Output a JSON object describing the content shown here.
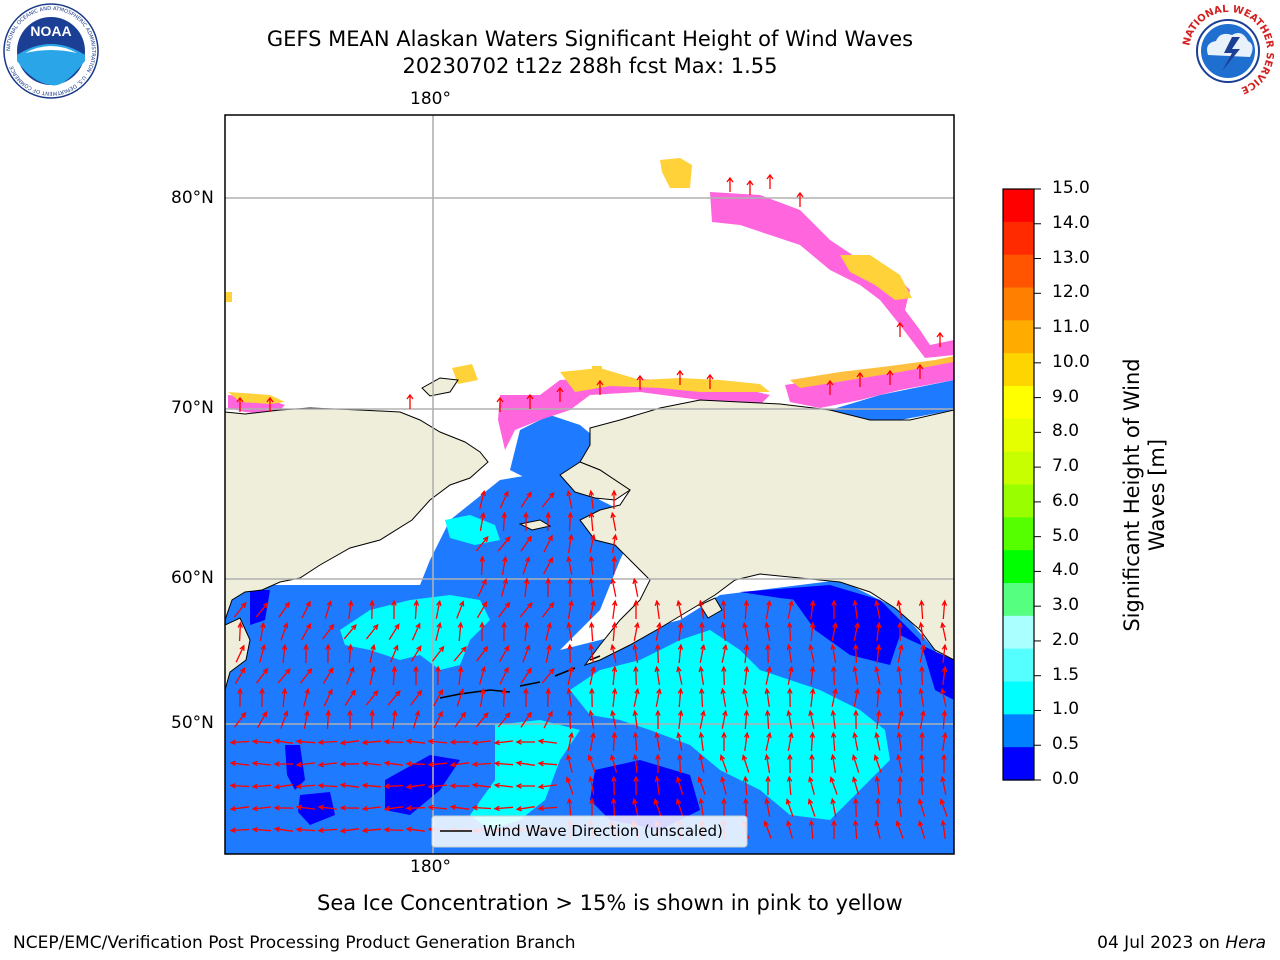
{
  "header": {
    "title_line1": "GEFS MEAN Alaskan Waters Significant Height of Wind Waves",
    "title_line2": "20230702 t12z 288h fcst   Max: 1.55"
  },
  "logos": {
    "noaa_text": "NOAA",
    "noaa_ring": "NATIONAL OCEANIC AND ATMOSPHERIC ADMINISTRATION · U.S. DEPARTMENT OF COMMERCE",
    "nws_ring": "NATIONAL WEATHER SERVICE"
  },
  "map": {
    "lon_top": "180°",
    "lon_bottom": "180°",
    "lat_labels": [
      "80°N",
      "70°N",
      "60°N",
      "50°N"
    ],
    "legend_text": "Wind Wave Direction (unscaled)",
    "colors": {
      "land": "#efeedb",
      "ocean_low": "#1e7bff",
      "ocean_mid": "#00ffff",
      "arrow": "#ff0000",
      "grid": "#b0b0b0"
    }
  },
  "colorbar": {
    "label": "Significant Height of Wind Waves [m]",
    "label_line1": "Significant Height of Wind",
    "label_line2": "Waves [m]",
    "ticks": [
      "15.0",
      "14.0",
      "13.0",
      "12.0",
      "11.0",
      "10.0",
      "9.0",
      "8.0",
      "7.0",
      "6.0",
      "5.0",
      "4.0",
      "3.0",
      "2.0",
      "1.5",
      "1.0",
      "0.5",
      "0.0"
    ],
    "colors": [
      "#ff0000",
      "#ff2a00",
      "#ff5500",
      "#ff8000",
      "#ffab00",
      "#ffd500",
      "#ffff00",
      "#e5ff00",
      "#c8ff00",
      "#99ff00",
      "#55ff00",
      "#00ff00",
      "#55ff80",
      "#aaffff",
      "#55ffff",
      "#00ffff",
      "#0080ff",
      "#0000ff"
    ]
  },
  "notes": {
    "ice_note": "Sea Ice Concentration > 15% is shown in pink to yellow"
  },
  "footer": {
    "left": "NCEP/EMC/Verification Post Processing Product Generation Branch",
    "right_date": "04 Jul 2023 on ",
    "right_host": "Hera"
  }
}
